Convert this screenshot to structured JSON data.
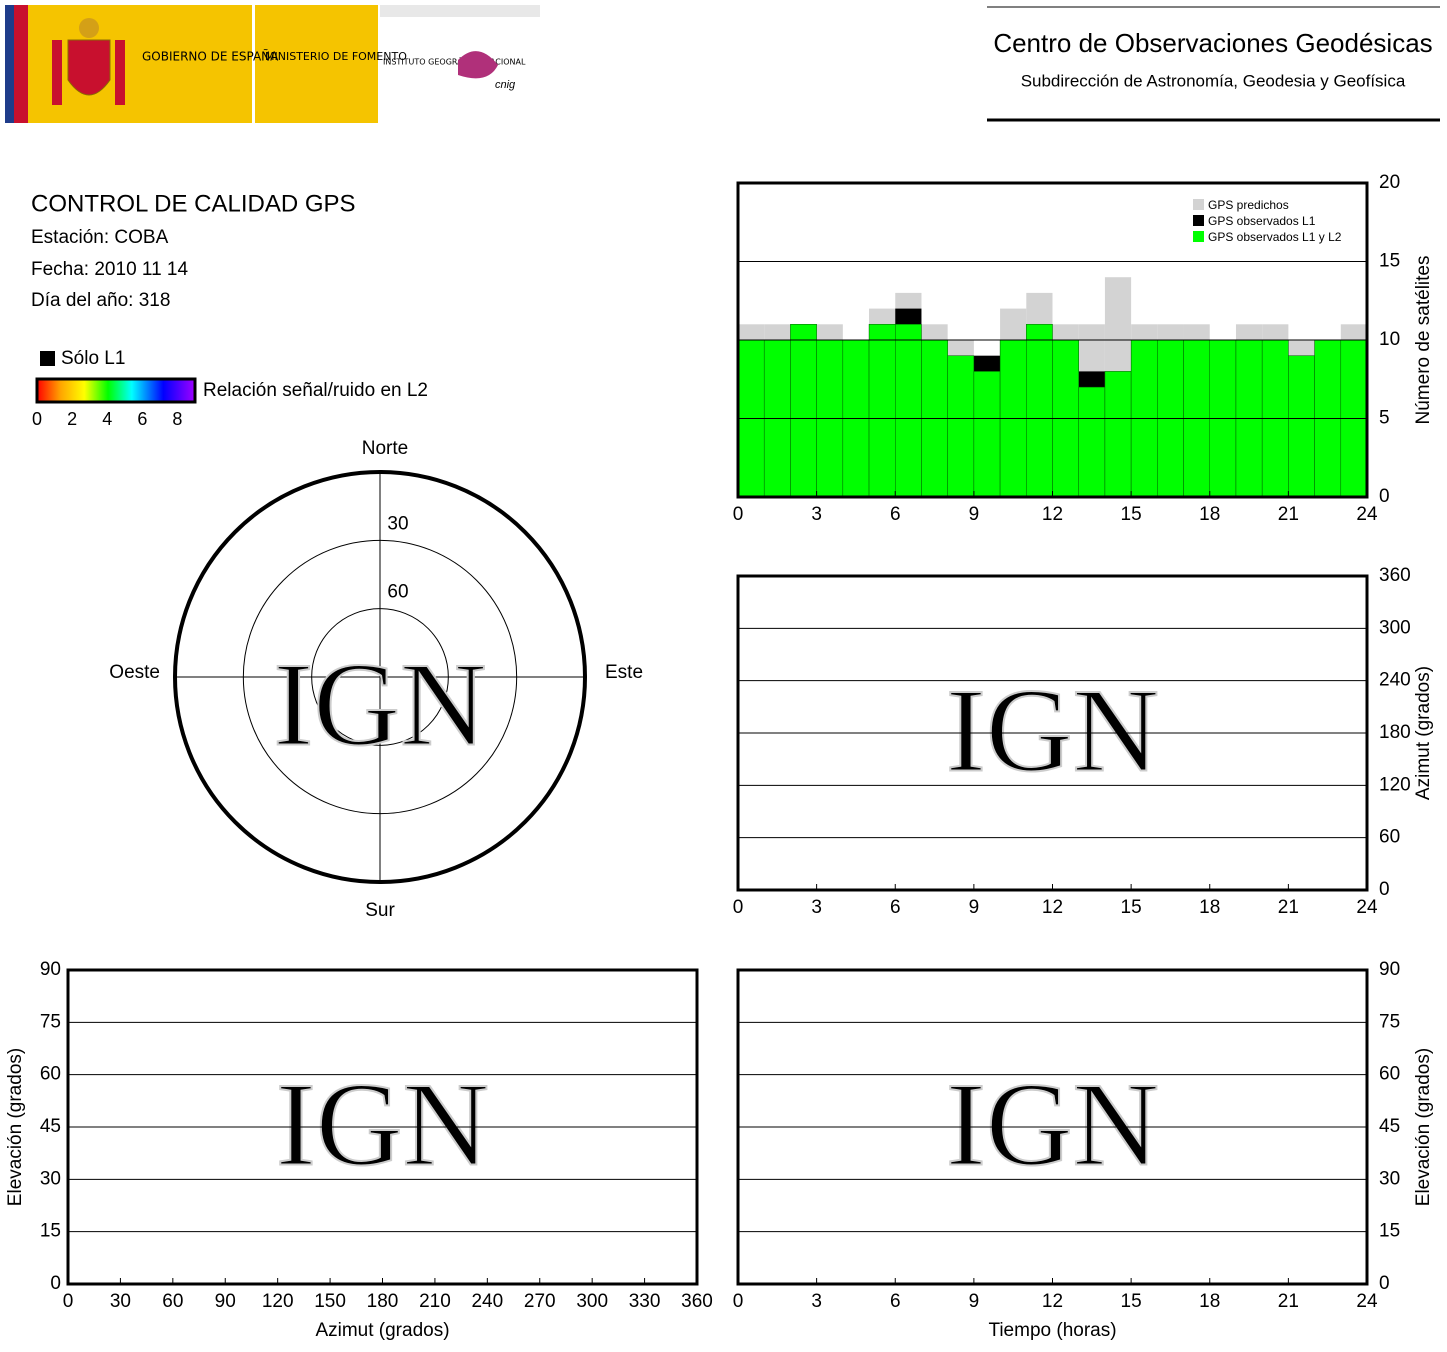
{
  "header": {
    "gov": "GOBIERNO DE ESPAÑA",
    "ministry": "MINISTERIO DE FOMENTO",
    "institute": "INSTITUTO GEOGRÁFICO NACIONAL",
    "cnig": "cnig",
    "center": "Centro de Observaciones Geodésicas",
    "subdirection": "Subdirección de Astronomía, Geodesia y Geofísica"
  },
  "info": {
    "title": "CONTROL DE CALIDAD GPS",
    "station": "Estación: COBA",
    "date": "Fecha: 2010 11 14",
    "doy": "Día del año: 318",
    "l1_only": "Sólo L1",
    "colorbar": {
      "label": "Relación señal/ruido en L2",
      "lim": [
        0,
        9
      ],
      "ticks": [
        0,
        2,
        4,
        6,
        8
      ]
    }
  },
  "watermark": "IGN",
  "chart_data": [
    {
      "type": "polar",
      "north": "Norte",
      "south": "Sur",
      "east": "Este",
      "west": "Oeste",
      "rlim": [
        0,
        90
      ],
      "rticks": [
        30,
        60
      ]
    },
    {
      "type": "step",
      "ylabel": "Número de satélites",
      "xlim": [
        0,
        24
      ],
      "xticks": [
        0,
        3,
        6,
        9,
        12,
        15,
        18,
        21,
        24
      ],
      "ylim": [
        0,
        20
      ],
      "yticks": [
        0,
        5,
        10,
        15,
        20
      ],
      "grid": true,
      "x": [
        0,
        1,
        2,
        3,
        4,
        5,
        6,
        7,
        8,
        9,
        10,
        11,
        12,
        13,
        14,
        15,
        16,
        17,
        18,
        19,
        20,
        21,
        22,
        23
      ],
      "series": [
        {
          "name": "GPS predichos",
          "color": "#d3d3d3",
          "values": [
            11,
            11,
            11,
            11,
            10,
            12,
            13,
            11,
            10,
            9,
            12,
            13,
            11,
            11,
            14,
            11,
            11,
            11,
            10,
            11,
            11,
            10,
            10,
            11
          ]
        },
        {
          "name": "GPS observados L1",
          "color": "#000000",
          "values": [
            10,
            10,
            11,
            10,
            10,
            11,
            12,
            10,
            9,
            9,
            10,
            11,
            10,
            8,
            8,
            10,
            10,
            10,
            10,
            10,
            10,
            9,
            10,
            10
          ]
        },
        {
          "name": "GPS observados L1 y L2",
          "color": "#00ff00",
          "values": [
            10,
            10,
            11,
            10,
            10,
            11,
            11,
            10,
            9,
            8,
            10,
            11,
            10,
            7,
            8,
            10,
            10,
            10,
            10,
            10,
            10,
            9,
            10,
            10
          ]
        }
      ]
    },
    {
      "type": "scatter",
      "ylabel": "Azimut (grados)",
      "xlim": [
        0,
        24
      ],
      "xticks": [
        0,
        3,
        6,
        9,
        12,
        15,
        18,
        21,
        24
      ],
      "ylim": [
        0,
        360
      ],
      "yticks": [
        0,
        60,
        120,
        180,
        240,
        300,
        360
      ],
      "grid": true
    },
    {
      "type": "scatter",
      "xlabel": "Azimut (grados)",
      "ylabel": "Elevación (grados)",
      "xlim": [
        0,
        360
      ],
      "xticks": [
        0,
        30,
        60,
        90,
        120,
        150,
        180,
        210,
        240,
        270,
        300,
        330,
        360
      ],
      "ylim": [
        0,
        90
      ],
      "yticks": [
        0,
        15,
        30,
        45,
        60,
        75,
        90
      ],
      "grid": true
    },
    {
      "type": "scatter",
      "xlabel": "Tiempo (horas)",
      "ylabel": "Elevación (grados)",
      "xlim": [
        0,
        24
      ],
      "xticks": [
        0,
        3,
        6,
        9,
        12,
        15,
        18,
        21,
        24
      ],
      "ylim": [
        0,
        90
      ],
      "yticks": [
        0,
        15,
        30,
        45,
        60,
        75,
        90
      ],
      "grid": true
    }
  ]
}
